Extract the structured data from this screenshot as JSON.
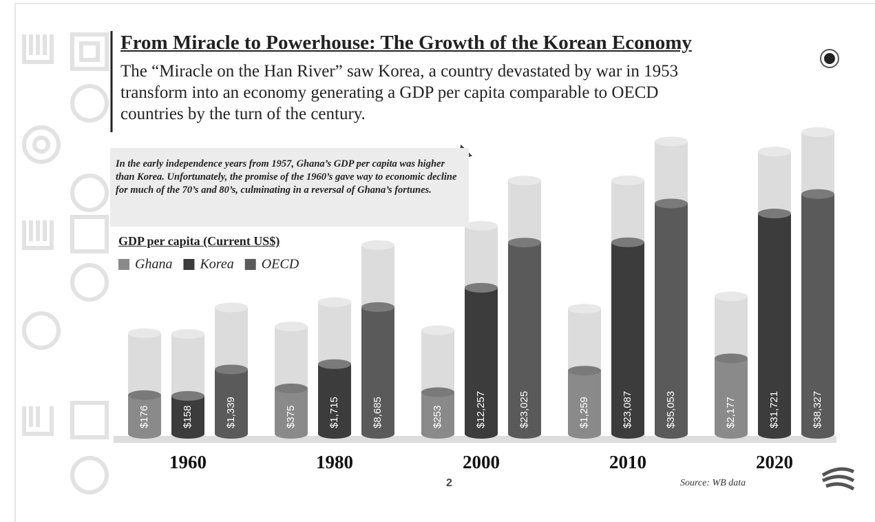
{
  "page_number": "2",
  "chart_data": {
    "type": "bar",
    "title": "From Miracle to Powerhouse: The Growth of the Korean Economy",
    "subtitle": "The “Miracle on the Han River” saw Korea, a country devastated by war in 1953 transform into an economy generating a GDP per capita comparable to OECD countries by the turn of the century.",
    "annotation": "In the early independence years from 1957, Ghana’s GDP per capita was higher than Korea. Unfortunately, the promise of the 1960’s gave way to economic decline for much of the 70’s and 80’s, culminating in a reversal of Ghana’s fortunes.",
    "ylabel": "GDP per capita (Current US$)",
    "source": "Source: WB data",
    "categories": [
      "1960",
      "1980",
      "2000",
      "2010",
      "2020"
    ],
    "series": [
      {
        "name": "Ghana",
        "color": "#8a8a8a",
        "values": [
          176,
          375,
          253,
          1259,
          2177
        ],
        "value_labels": [
          "$176",
          "$375",
          "$253",
          "$1,259",
          "$2,177"
        ]
      },
      {
        "name": "Korea",
        "color": "#3c3c3c",
        "values": [
          158,
          1715,
          12257,
          23087,
          31721
        ],
        "value_labels": [
          "$158",
          "$1,715",
          "$12,257",
          "$23,087",
          "$31,721"
        ]
      },
      {
        "name": "OECD",
        "color": "#5a5a5a",
        "values": [
          1339,
          8685,
          23025,
          35053,
          38327
        ],
        "value_labels": [
          "$1,339",
          "$8,685",
          "$23,025",
          "$35,053",
          "$38,327"
        ]
      }
    ]
  }
}
